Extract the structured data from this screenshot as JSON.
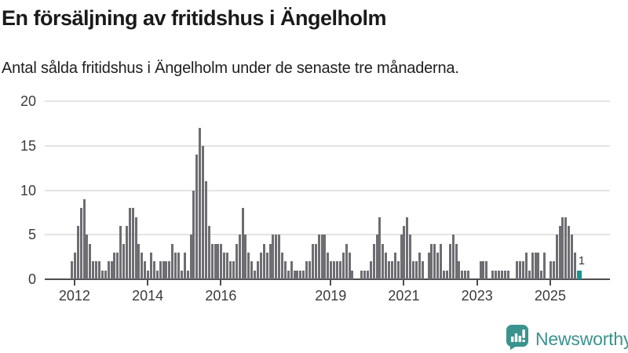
{
  "header": {
    "title": "En försäljning av fritidshus i Ängelholm",
    "subtitle": "Antal sålda fritidshus i Ängelholm under de senaste tre månaderna."
  },
  "chart_data": {
    "type": "bar",
    "title": "En försäljning av fritidshus i Ängelholm",
    "xlabel": "",
    "ylabel": "",
    "ylim": [
      0,
      20
    ],
    "yticks": [
      0,
      5,
      10,
      15,
      20
    ],
    "xtick_years": [
      2012,
      2014,
      2016,
      2019,
      2021,
      2023,
      2025
    ],
    "grid": "horizontal",
    "start_month": "2011-12",
    "interval": "monthly",
    "values": [
      2,
      3,
      6,
      8,
      9,
      5,
      4,
      2,
      2,
      2,
      1,
      1,
      2,
      2,
      3,
      3,
      6,
      4,
      6,
      8,
      8,
      7,
      4,
      3,
      2,
      1,
      3,
      2,
      1,
      2,
      2,
      2,
      2,
      4,
      3,
      3,
      1,
      3,
      1,
      5,
      10,
      14,
      17,
      15,
      11,
      6,
      4,
      4,
      4,
      4,
      3,
      3,
      2,
      2,
      4,
      5,
      8,
      5,
      3,
      2,
      1,
      2,
      3,
      4,
      3,
      4,
      5,
      5,
      5,
      3,
      2,
      1,
      2,
      1,
      1,
      1,
      1,
      2,
      2,
      4,
      4,
      5,
      5,
      5,
      3,
      2,
      2,
      2,
      2,
      3,
      4,
      3,
      1,
      0,
      0,
      1,
      1,
      1,
      2,
      4,
      5,
      7,
      4,
      3,
      2,
      2,
      3,
      2,
      5,
      6,
      7,
      5,
      2,
      2,
      3,
      2,
      0,
      3,
      4,
      4,
      3,
      4,
      1,
      1,
      4,
      5,
      4,
      2,
      1,
      1,
      1,
      0,
      0,
      0,
      2,
      2,
      2,
      0,
      1,
      1,
      1,
      1,
      1,
      1,
      0,
      0,
      2,
      2,
      2,
      3,
      1,
      3,
      3,
      3,
      1,
      3,
      0,
      2,
      2,
      5,
      6,
      7,
      7,
      6,
      5,
      3,
      1
    ],
    "highlight_last_bar": true,
    "last_value_label": "1",
    "colors": {
      "bar": "#6d6d72",
      "highlight": "#169390",
      "gridline": "#e4e4e4",
      "axis": "#4e4e50",
      "tick_label": "#3b3b3d"
    },
    "legend": []
  },
  "footer": {
    "brand": "Newsworthy",
    "icon": "newsworthy-speech-bubble-chart-icon",
    "brand_color": "#3a938e"
  }
}
